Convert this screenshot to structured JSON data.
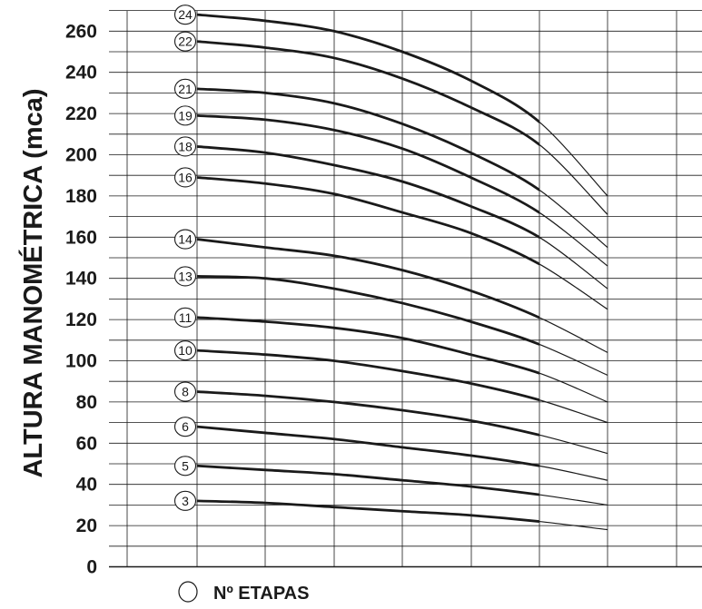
{
  "chart_data": {
    "type": "line",
    "title": "",
    "xlabel": "",
    "ylabel": "ALTURA MANOMÉTRICA (mca)",
    "ylim": [
      0,
      270
    ],
    "yticks": [
      0,
      20,
      40,
      60,
      80,
      100,
      120,
      140,
      160,
      180,
      200,
      220,
      240,
      260
    ],
    "xlim": [
      0,
      7
    ],
    "grid": true,
    "legend": {
      "position": "bottom-left",
      "text": "Nº ETAPAS"
    },
    "line_color": "#1a1a1a",
    "series": [
      {
        "name": "24",
        "x": [
          1,
          2,
          3,
          4,
          5,
          6,
          7
        ],
        "values": [
          268,
          265,
          260,
          250,
          236,
          216,
          180
        ]
      },
      {
        "name": "22",
        "x": [
          1,
          2,
          3,
          4,
          5,
          6,
          7
        ],
        "values": [
          255,
          252,
          247,
          237,
          223,
          205,
          171
        ]
      },
      {
        "name": "21",
        "x": [
          1,
          2,
          3,
          4,
          5,
          6,
          7
        ],
        "values": [
          232,
          230,
          225,
          215,
          201,
          183,
          155
        ]
      },
      {
        "name": "19",
        "x": [
          1,
          2,
          3,
          4,
          5,
          6,
          7
        ],
        "values": [
          219,
          217,
          212,
          203,
          189,
          172,
          146
        ]
      },
      {
        "name": "18",
        "x": [
          1,
          2,
          3,
          4,
          5,
          6,
          7
        ],
        "values": [
          204,
          201,
          195,
          187,
          175,
          160,
          135
        ]
      },
      {
        "name": "16",
        "x": [
          1,
          2,
          3,
          4,
          5,
          6,
          7
        ],
        "values": [
          189,
          186,
          181,
          172,
          162,
          147,
          125
        ]
      },
      {
        "name": "14",
        "x": [
          1,
          2,
          3,
          4,
          5,
          6,
          7
        ],
        "values": [
          159,
          155,
          151,
          144,
          134,
          121,
          104
        ]
      },
      {
        "name": "13",
        "x": [
          1,
          2,
          3,
          4,
          5,
          6,
          7
        ],
        "values": [
          141,
          140,
          135,
          128,
          119,
          108,
          93
        ]
      },
      {
        "name": "11",
        "x": [
          1,
          2,
          3,
          4,
          5,
          6,
          7
        ],
        "values": [
          121,
          119,
          116,
          111,
          103,
          94,
          80
        ]
      },
      {
        "name": "10",
        "x": [
          1,
          2,
          3,
          4,
          5,
          6,
          7
        ],
        "values": [
          105,
          103,
          100,
          95,
          89,
          81,
          70
        ]
      },
      {
        "name": "8",
        "x": [
          1,
          2,
          3,
          4,
          5,
          6,
          7
        ],
        "values": [
          85,
          83,
          80,
          76,
          71,
          64,
          55
        ]
      },
      {
        "name": "6",
        "x": [
          1,
          2,
          3,
          4,
          5,
          6,
          7
        ],
        "values": [
          68,
          65,
          62,
          58,
          54,
          49,
          42
        ]
      },
      {
        "name": "5",
        "x": [
          1,
          2,
          3,
          4,
          5,
          6,
          7
        ],
        "values": [
          49,
          47,
          45,
          42,
          39,
          35,
          30
        ]
      },
      {
        "name": "3",
        "x": [
          1,
          2,
          3,
          4,
          5,
          6,
          7
        ],
        "values": [
          32,
          31,
          29,
          27,
          25,
          22,
          18
        ]
      }
    ]
  }
}
